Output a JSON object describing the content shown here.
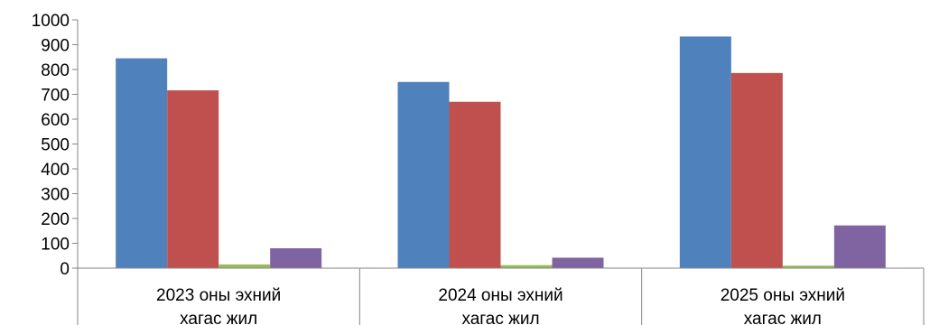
{
  "chart_data": {
    "type": "bar",
    "title": "",
    "xlabel": "",
    "ylabel": "",
    "ylim": [
      0,
      1000
    ],
    "ytick_step": 100,
    "grid": false,
    "legend": "none",
    "categories": [
      [
        "2023 оны эхний",
        "хагас жил"
      ],
      [
        "2024 оны эхний",
        "хагас жил"
      ],
      [
        "2025 оны эхний",
        "хагас жил"
      ]
    ],
    "series": [
      {
        "color": "#4F81BD",
        "values": [
          845,
          750,
          933
        ]
      },
      {
        "color": "#C0504D",
        "values": [
          716,
          670,
          786
        ]
      },
      {
        "color": "#9BBB59",
        "values": [
          15,
          12,
          10
        ]
      },
      {
        "color": "#8064A2",
        "values": [
          80,
          42,
          172
        ]
      }
    ]
  }
}
